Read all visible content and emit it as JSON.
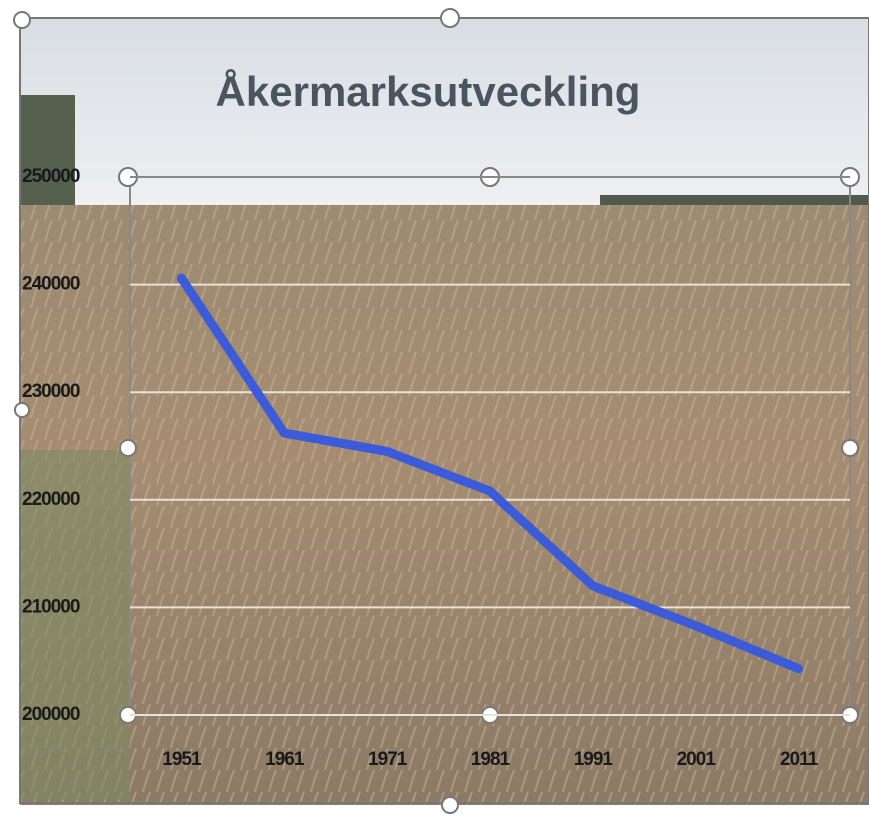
{
  "chart_data": {
    "type": "line",
    "title": "Åkermarksutveckling",
    "categories": [
      "1951",
      "1961",
      "1971",
      "1981",
      "1991",
      "2001",
      "2011"
    ],
    "values": [
      240600,
      226200,
      224500,
      220800,
      212000,
      208300,
      204300
    ],
    "color": "#3b5bd9",
    "ylim": [
      200000,
      250000
    ],
    "yticks": [
      200000,
      210000,
      220000,
      230000,
      240000,
      250000
    ],
    "grid": true
  }
}
